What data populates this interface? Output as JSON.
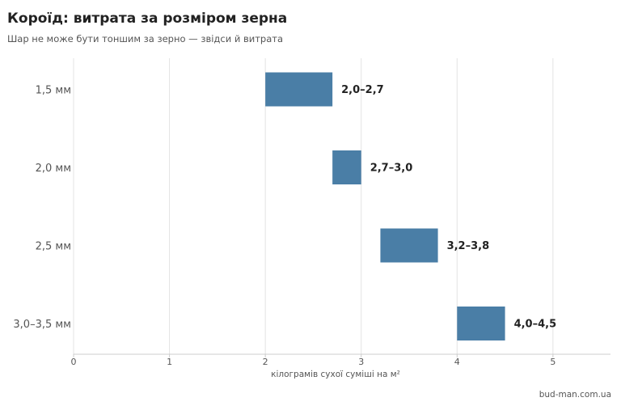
{
  "title": "Короїд: витрата за розміром зерна",
  "subtitle": "Шар не може бути тоншим за зерно — звідси й витрата",
  "source": "bud-man.com.ua",
  "colors": {
    "bar": "#4a7ea6",
    "grid": "#e3e3e3",
    "axis": "#cccccc"
  },
  "chart_data": {
    "type": "bar",
    "orientation": "horizontal",
    "subtype": "range",
    "categories": [
      "1,5 мм",
      "2,0 мм",
      "2,5 мм",
      "3,0–3,5 мм"
    ],
    "ranges": [
      {
        "start": 2.0,
        "end": 2.7,
        "label": "2,0–2,7"
      },
      {
        "start": 2.7,
        "end": 3.0,
        "label": "2,7–3,0"
      },
      {
        "start": 3.2,
        "end": 3.8,
        "label": "3,2–3,8"
      },
      {
        "start": 4.0,
        "end": 4.5,
        "label": "4,0–4,5"
      }
    ],
    "xlim": [
      0,
      5.6
    ],
    "xticks": [
      0,
      1,
      2,
      3,
      4,
      5
    ],
    "xlabel": "кілограмів сухої суміші на м²",
    "ylabel": "",
    "grid": "vertical"
  }
}
